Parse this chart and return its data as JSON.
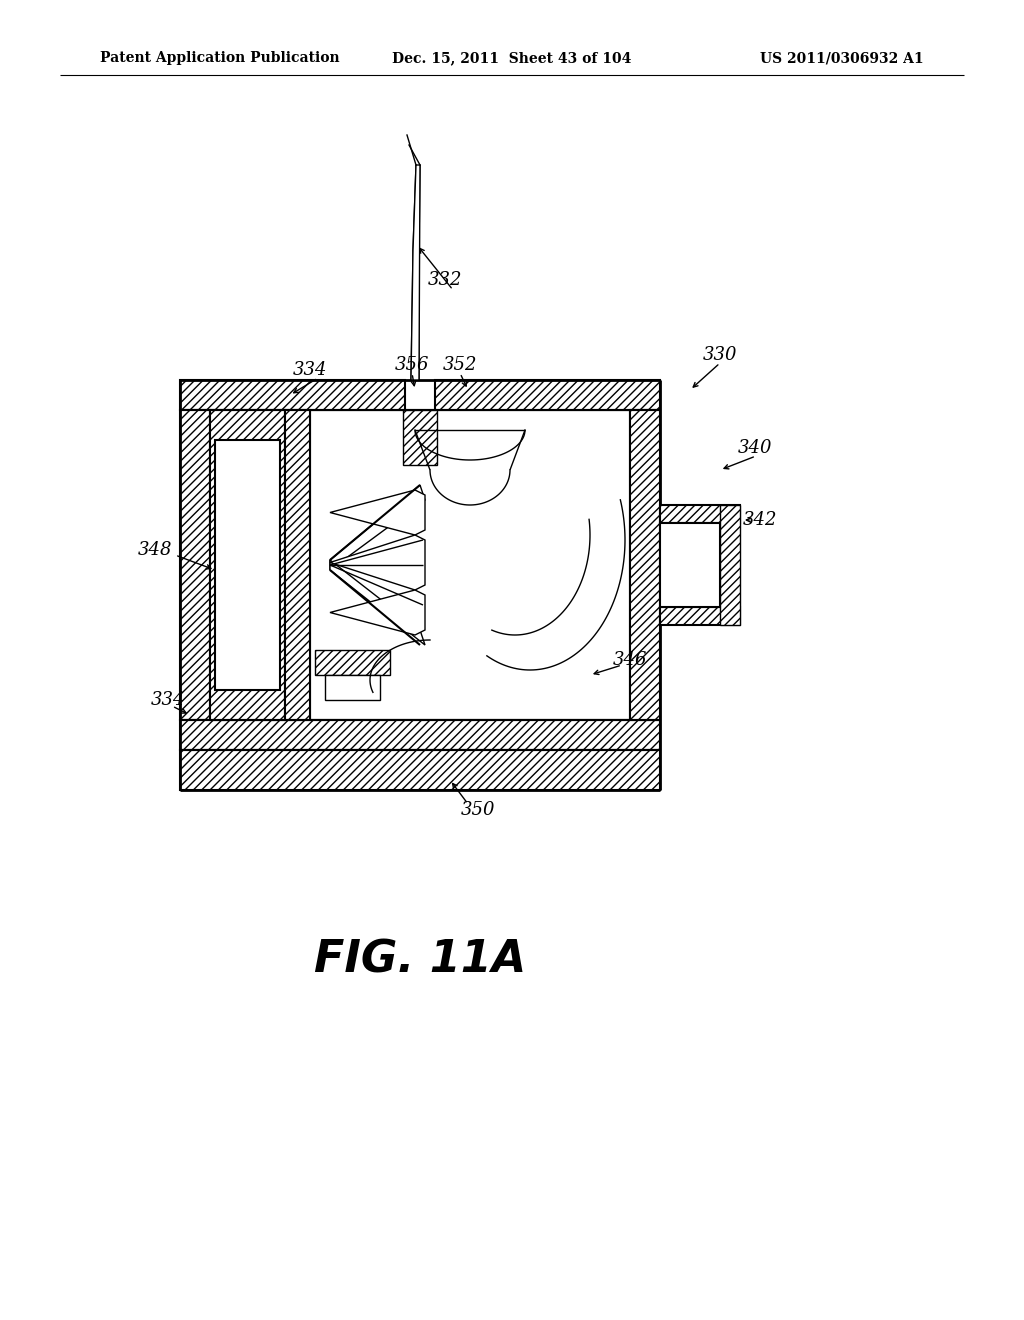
{
  "header_left": "Patent Application Publication",
  "header_mid": "Dec. 15, 2011  Sheet 43 of 104",
  "header_right": "US 2011/0306932 A1",
  "background_color": "#ffffff",
  "fig_label": "FIG. 11A"
}
